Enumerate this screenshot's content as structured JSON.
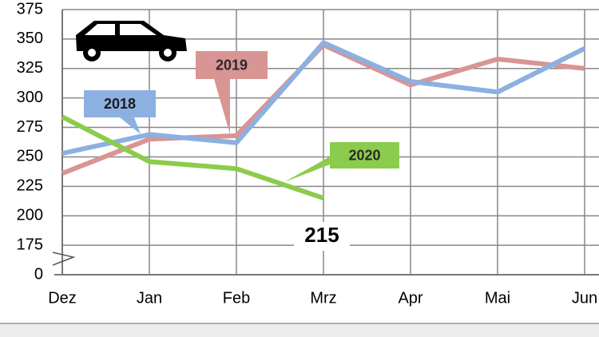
{
  "chart_data": {
    "type": "line",
    "categories": [
      "Dez",
      "Jan",
      "Feb",
      "Mrz",
      "Apr",
      "Mai",
      "Jun"
    ],
    "series": [
      {
        "name": "2018",
        "color": "#8cb0e0",
        "values": [
          253,
          269,
          262,
          347,
          314,
          305,
          342
        ]
      },
      {
        "name": "2019",
        "color": "#d99494",
        "values": [
          236,
          265,
          268,
          345,
          311,
          333,
          325
        ]
      },
      {
        "name": "2020",
        "color": "#8ccc4c",
        "values": [
          284,
          246,
          240,
          215,
          null,
          null,
          null
        ],
        "value_labels": [
          null,
          null,
          null,
          "215"
        ]
      }
    ],
    "ylim": [
      0,
      375
    ],
    "yticks": [
      0,
      175,
      200,
      225,
      250,
      275,
      300,
      325,
      350,
      375
    ],
    "axis_break": [
      0,
      150
    ],
    "grid": true
  }
}
